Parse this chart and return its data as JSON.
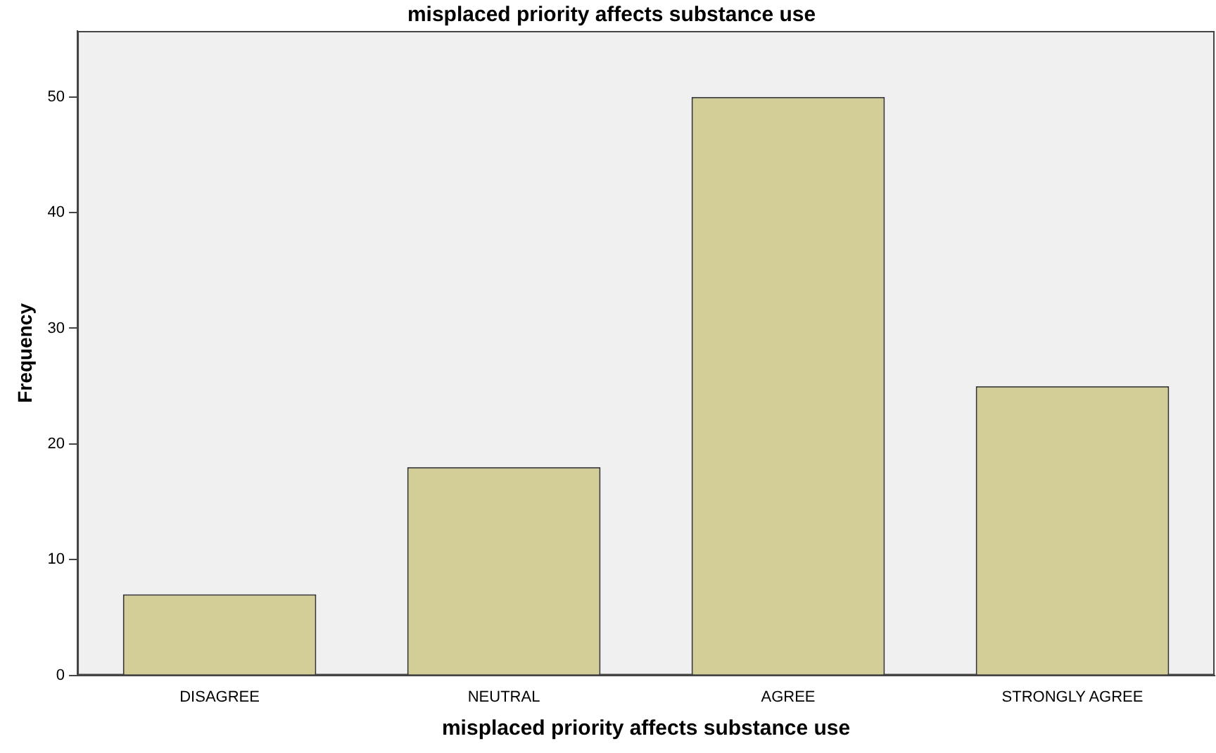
{
  "chart_data": {
    "type": "bar",
    "title": "misplaced priority affects substance use",
    "xlabel": "misplaced priority affects substance use",
    "ylabel": "Frequency",
    "categories": [
      "DISAGREE",
      "NEUTRAL",
      "AGREE",
      "STRONGLY AGREE"
    ],
    "values": [
      7,
      18,
      50,
      25
    ],
    "color": "#d3ce97",
    "ylim": [
      0,
      55.7
    ],
    "yticks": [
      0,
      10,
      20,
      30,
      40,
      50
    ],
    "grid": false,
    "legend": false
  }
}
